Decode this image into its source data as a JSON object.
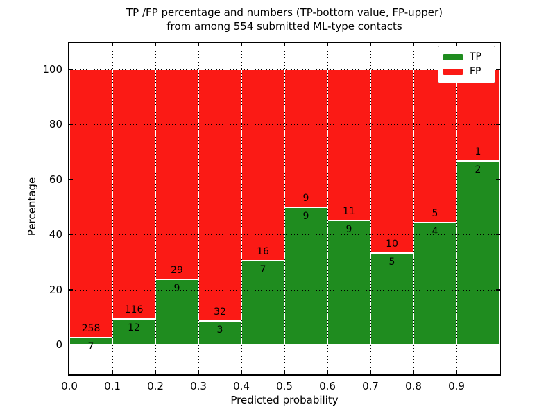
{
  "chart": {
    "title_line1": "TP /FP percentage and numbers (TP-bottom value, FP-upper)",
    "title_line2": "from among 554 submitted ML-type contacts",
    "xlabel": "Predicted probability",
    "ylabel": "Percentage",
    "colors": {
      "tp": "#1f8c1f",
      "fp": "#fb1a15",
      "bar_edge": "#ffffff",
      "axis": "#000000",
      "grid": "#000000",
      "background": "#ffffff"
    },
    "legend": [
      {
        "label": "TP",
        "color_key": "tp"
      },
      {
        "label": "FP",
        "color_key": "fp"
      }
    ]
  },
  "chart_data": {
    "type": "bar",
    "stacked": true,
    "normalized": "percent",
    "title": "TP /FP percentage and numbers (TP-bottom value, FP-upper) from among 554 submitted ML-type contacts",
    "xlabel": "Predicted probability",
    "ylabel": "Percentage",
    "total_contacts": 554,
    "xlim": [
      0.0,
      1.0
    ],
    "ylim": [
      -10.8,
      110
    ],
    "bin_width": 0.1,
    "bin_starts": [
      0.0,
      0.1,
      0.2,
      0.3,
      0.4,
      0.5,
      0.6,
      0.7,
      0.8,
      0.9
    ],
    "x_tick_labels": [
      "0.0",
      "0.1",
      "0.2",
      "0.3",
      "0.4",
      "0.5",
      "0.6",
      "0.7",
      "0.8",
      "0.9"
    ],
    "y_ticks": [
      0,
      20,
      40,
      60,
      80,
      100
    ],
    "grid": "dotted, on top of bars",
    "legend_position": "upper right",
    "series": [
      {
        "name": "TP",
        "color": "#1f8c1f",
        "counts": [
          7,
          12,
          9,
          3,
          7,
          9,
          9,
          5,
          4,
          2
        ]
      },
      {
        "name": "FP",
        "color": "#fb1a15",
        "counts": [
          258,
          116,
          29,
          32,
          16,
          9,
          11,
          10,
          5,
          1
        ]
      }
    ],
    "tp_percent": [
      2.64,
      9.38,
      23.68,
      8.57,
      30.43,
      50.0,
      45.0,
      33.33,
      44.44,
      66.67
    ],
    "bar_value_labels": "FP count above segment boundary, TP count below segment boundary"
  }
}
